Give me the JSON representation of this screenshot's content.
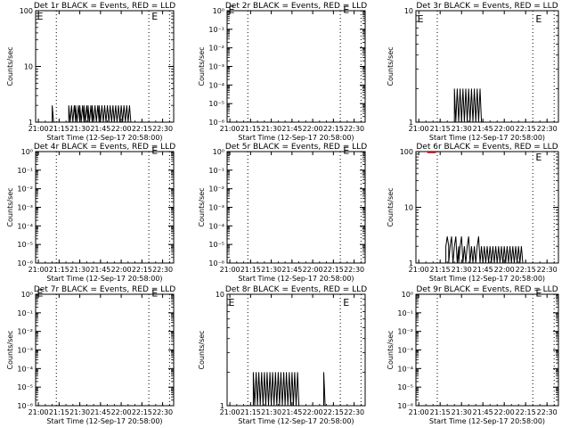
{
  "chart_data": [
    {
      "type": "line",
      "title": "Det 1r BLACK = Events, RED = LLD",
      "xlabel": "Start Time (12-Sep-17 20:58:00)",
      "ylabel": "Counts/sec",
      "log_y": true,
      "x_ticks": [
        "21:00",
        "21:15",
        "21:30",
        "21:45",
        "22:00",
        "22:15",
        "22:30"
      ],
      "y_ticks": [
        "1",
        "10",
        "100"
      ],
      "ylim": [
        1,
        100
      ],
      "xlim": [
        "20:58",
        "22:38"
      ],
      "dotted_vlines": [
        "21:13",
        "22:20",
        "22:35"
      ],
      "e_markers": [
        [
          "20:59",
          80
        ],
        [
          "22:22",
          80
        ]
      ],
      "series": [
        {
          "name": "Events",
          "color": "#000000",
          "points": [
            [
              "21:10",
              1
            ],
            [
              "21:10",
              2
            ],
            [
              "21:11",
              1
            ],
            [
              "21:22",
              1
            ],
            [
              "21:22",
              2
            ],
            [
              "21:23",
              1
            ],
            [
              "21:24",
              2
            ],
            [
              "21:25",
              1
            ],
            [
              "21:26",
              2
            ],
            [
              "21:27",
              1
            ],
            [
              "21:27",
              2
            ],
            [
              "21:28",
              1
            ],
            [
              "21:29",
              2
            ],
            [
              "21:30",
              1
            ],
            [
              "21:30",
              2
            ],
            [
              "21:31",
              1
            ],
            [
              "21:32",
              2
            ],
            [
              "21:33",
              1
            ],
            [
              "21:33",
              2
            ],
            [
              "21:34",
              1
            ],
            [
              "21:35",
              2
            ],
            [
              "21:36",
              1
            ],
            [
              "21:36",
              2
            ],
            [
              "21:37",
              1
            ],
            [
              "21:38",
              2
            ],
            [
              "21:39",
              1
            ],
            [
              "21:39",
              2
            ],
            [
              "21:40",
              1
            ],
            [
              "21:41",
              2
            ],
            [
              "21:42",
              1
            ],
            [
              "21:43",
              2
            ],
            [
              "21:44",
              1
            ],
            [
              "21:44",
              2
            ],
            [
              "21:45",
              1
            ],
            [
              "21:46",
              2
            ],
            [
              "21:47",
              1
            ],
            [
              "21:48",
              2
            ],
            [
              "21:49",
              1
            ],
            [
              "21:50",
              2
            ],
            [
              "21:51",
              1
            ],
            [
              "21:52",
              2
            ],
            [
              "21:53",
              1
            ],
            [
              "21:54",
              2
            ],
            [
              "21:55",
              1
            ],
            [
              "21:56",
              2
            ],
            [
              "21:57",
              1
            ],
            [
              "21:58",
              2
            ],
            [
              "21:59",
              1
            ],
            [
              "22:00",
              2
            ],
            [
              "22:01",
              1
            ],
            [
              "22:02",
              2
            ],
            [
              "22:03",
              1
            ],
            [
              "22:04",
              2
            ],
            [
              "22:05",
              1
            ],
            [
              "22:06",
              2
            ],
            [
              "22:07",
              1
            ],
            [
              "22:08",
              1
            ]
          ]
        }
      ]
    },
    {
      "type": "line",
      "title": "Det 2r BLACK = Events, RED = LLD",
      "xlabel": "Start Time (12-Sep-17 20:58:00)",
      "ylabel": "Counts/sec",
      "log_y": true,
      "x_ticks": [
        "21:00",
        "21:15",
        "21:30",
        "21:45",
        "22:00",
        "22:15",
        "22:30"
      ],
      "y_ticks": [
        "10⁰",
        "10⁻¹",
        "10⁻²",
        "10⁻³",
        "10⁻⁴",
        "10⁻⁵",
        "10⁻⁶"
      ],
      "ylim": [
        1e-06,
        1
      ],
      "xlim": [
        "20:58",
        "22:38"
      ],
      "dotted_vlines": [
        "21:13",
        "22:20",
        "22:35"
      ],
      "e_markers": [
        [
          "20:59",
          1.2
        ],
        [
          "22:22",
          1.2
        ]
      ],
      "series": []
    },
    {
      "type": "line",
      "title": "Det 3r BLACK = Events, RED = LLD",
      "xlabel": "Start Time (12-Sep-17 20:58:00)",
      "ylabel": "Counts/sec",
      "log_y": true,
      "x_ticks": [
        "21:00",
        "21:15",
        "21:30",
        "21:45",
        "22:00",
        "22:15",
        "22:30"
      ],
      "y_ticks": [
        "1",
        "10"
      ],
      "ylim": [
        1,
        10
      ],
      "xlim": [
        "20:58",
        "22:38"
      ],
      "dotted_vlines": [
        "21:13",
        "22:20",
        "22:35"
      ],
      "e_markers": [
        [
          "20:59",
          8.5
        ],
        [
          "22:22",
          8.5
        ]
      ],
      "series": [
        {
          "name": "Events",
          "color": "#000000",
          "points": [
            [
              "21:25",
              1
            ],
            [
              "21:25",
              2
            ],
            [
              "21:26",
              1
            ],
            [
              "21:27",
              2
            ],
            [
              "21:28",
              1
            ],
            [
              "21:29",
              2
            ],
            [
              "21:30",
              1
            ],
            [
              "21:31",
              2
            ],
            [
              "21:32",
              1
            ],
            [
              "21:33",
              2
            ],
            [
              "21:34",
              1
            ],
            [
              "21:35",
              2
            ],
            [
              "21:36",
              1
            ],
            [
              "21:37",
              2
            ],
            [
              "21:38",
              1
            ],
            [
              "21:39",
              2
            ],
            [
              "21:40",
              1
            ],
            [
              "21:41",
              2
            ],
            [
              "21:42",
              1
            ],
            [
              "21:43",
              2
            ],
            [
              "21:44",
              1
            ]
          ]
        }
      ]
    },
    {
      "type": "line",
      "title": "Det 4r BLACK = Events, RED = LLD",
      "xlabel": "Start Time (12-Sep-17 20:58:00)",
      "ylabel": "Counts/sec",
      "log_y": true,
      "x_ticks": [
        "21:00",
        "21:15",
        "21:30",
        "21:45",
        "22:00",
        "22:15",
        "22:30"
      ],
      "y_ticks": [
        "10⁰",
        "10⁻¹",
        "10⁻²",
        "10⁻³",
        "10⁻⁴",
        "10⁻⁵",
        "10⁻⁶"
      ],
      "ylim": [
        1e-06,
        1
      ],
      "xlim": [
        "20:58",
        "22:38"
      ],
      "dotted_vlines": [
        "21:13",
        "22:20",
        "22:35"
      ],
      "e_markers": [
        [
          "22:22",
          1.2
        ]
      ],
      "series": []
    },
    {
      "type": "line",
      "title": "Det 5r BLACK = Events, RED = LLD",
      "xlabel": "Start Time (12-Sep-17 20:58:00)",
      "ylabel": "Counts/sec",
      "log_y": true,
      "x_ticks": [
        "21:00",
        "21:15",
        "21:30",
        "21:45",
        "22:00",
        "22:15",
        "22:30"
      ],
      "y_ticks": [
        "10⁰",
        "10⁻¹",
        "10⁻²",
        "10⁻³",
        "10⁻⁴",
        "10⁻⁵",
        "10⁻⁶"
      ],
      "ylim": [
        1e-06,
        1
      ],
      "xlim": [
        "20:58",
        "22:38"
      ],
      "dotted_vlines": [
        "21:13",
        "22:20",
        "22:35"
      ],
      "e_markers": [
        [
          "22:22",
          1.2
        ]
      ],
      "series": []
    },
    {
      "type": "line",
      "title": "Det 6r BLACK = Events, RED = LLD",
      "xlabel": "Start Time (12-Sep-17 20:58:00)",
      "ylabel": "Counts/sec",
      "log_y": true,
      "x_ticks": [
        "21:00",
        "21:15",
        "21:30",
        "21:45",
        "22:00",
        "22:15",
        "22:30"
      ],
      "y_ticks": [
        "1",
        "10",
        "100"
      ],
      "ylim": [
        1,
        100
      ],
      "xlim": [
        "20:58",
        "22:38"
      ],
      "dotted_vlines": [
        "21:13",
        "22:20",
        "22:35"
      ],
      "e_markers": [
        [
          "22:22",
          80
        ]
      ],
      "red_segment": [
        [
          "21:06",
          100
        ],
        [
          "21:12",
          100
        ]
      ],
      "series": [
        {
          "name": "Events",
          "color": "#000000",
          "points": [
            [
              "21:19",
              1
            ],
            [
              "21:19",
              2
            ],
            [
              "21:20",
              3
            ],
            [
              "21:21",
              2
            ],
            [
              "21:21",
              1
            ],
            [
              "21:22",
              2
            ],
            [
              "21:23",
              3
            ],
            [
              "21:24",
              1
            ],
            [
              "21:25",
              2
            ],
            [
              "21:26",
              3
            ],
            [
              "21:27",
              1
            ],
            [
              "21:28",
              2
            ],
            [
              "21:28",
              1
            ],
            [
              "21:29",
              2
            ],
            [
              "21:30",
              3
            ],
            [
              "21:31",
              1
            ],
            [
              "21:32",
              2
            ],
            [
              "21:33",
              1
            ],
            [
              "21:34",
              2
            ],
            [
              "21:35",
              3
            ],
            [
              "21:36",
              1
            ],
            [
              "21:37",
              2
            ],
            [
              "21:38",
              1
            ],
            [
              "21:39",
              2
            ],
            [
              "21:40",
              1
            ],
            [
              "21:41",
              2
            ],
            [
              "21:42",
              3
            ],
            [
              "21:43",
              1
            ],
            [
              "21:44",
              2
            ],
            [
              "21:45",
              1
            ],
            [
              "21:46",
              2
            ],
            [
              "21:47",
              1
            ],
            [
              "21:48",
              2
            ],
            [
              "21:49",
              1
            ],
            [
              "21:50",
              2
            ],
            [
              "21:51",
              1
            ],
            [
              "21:52",
              2
            ],
            [
              "21:53",
              1
            ],
            [
              "21:54",
              2
            ],
            [
              "21:55",
              1
            ],
            [
              "21:56",
              2
            ],
            [
              "21:57",
              1
            ],
            [
              "21:58",
              2
            ],
            [
              "21:59",
              1
            ],
            [
              "22:00",
              2
            ],
            [
              "22:01",
              1
            ],
            [
              "22:02",
              2
            ],
            [
              "22:03",
              1
            ],
            [
              "22:04",
              2
            ],
            [
              "22:05",
              1
            ],
            [
              "22:06",
              2
            ],
            [
              "22:07",
              1
            ],
            [
              "22:08",
              2
            ],
            [
              "22:09",
              1
            ],
            [
              "22:10",
              2
            ],
            [
              "22:11",
              1
            ],
            [
              "22:12",
              2
            ],
            [
              "22:13",
              1
            ]
          ]
        }
      ]
    },
    {
      "type": "line",
      "title": "Det 7r BLACK = Events, RED = LLD",
      "xlabel": "Start Time (12-Sep-17 20:58:00)",
      "ylabel": "Counts/sec",
      "log_y": true,
      "x_ticks": [
        "21:00",
        "21:15",
        "21:30",
        "21:45",
        "22:00",
        "22:15",
        "22:30"
      ],
      "y_ticks": [
        "10⁰",
        "10⁻¹",
        "10⁻²",
        "10⁻³",
        "10⁻⁴",
        "10⁻⁵",
        "10⁻⁶"
      ],
      "ylim": [
        1e-06,
        1
      ],
      "xlim": [
        "20:58",
        "22:38"
      ],
      "dotted_vlines": [
        "21:13",
        "22:20",
        "22:35"
      ],
      "e_markers": [
        [
          "20:59",
          1.2
        ],
        [
          "22:22",
          1.2
        ]
      ],
      "series": []
    },
    {
      "type": "line",
      "title": "Det 8r BLACK = Events, RED = LLD",
      "xlabel": "Start Time (12-Sep-17 20:58:00)",
      "ylabel": "Counts/sec",
      "log_y": true,
      "x_ticks": [
        "21:00",
        "21:15",
        "21:30",
        "21:45",
        "22:00",
        "22:15",
        "22:30"
      ],
      "y_ticks": [
        "1",
        "10"
      ],
      "ylim": [
        1,
        10
      ],
      "xlim": [
        "20:58",
        "22:38"
      ],
      "dotted_vlines": [
        "21:13",
        "22:20",
        "22:35"
      ],
      "e_markers": [
        [
          "20:59",
          8.5
        ],
        [
          "22:22",
          8.5
        ]
      ],
      "series": [
        {
          "name": "Events",
          "color": "#000000",
          "points": [
            [
              "21:17",
              1
            ],
            [
              "21:17",
              2
            ],
            [
              "21:18",
              1
            ],
            [
              "21:19",
              2
            ],
            [
              "21:20",
              1
            ],
            [
              "21:21",
              2
            ],
            [
              "21:22",
              1
            ],
            [
              "21:23",
              2
            ],
            [
              "21:24",
              1
            ],
            [
              "21:25",
              2
            ],
            [
              "21:26",
              1
            ],
            [
              "21:27",
              2
            ],
            [
              "21:28",
              1
            ],
            [
              "21:29",
              2
            ],
            [
              "21:30",
              1
            ],
            [
              "21:31",
              2
            ],
            [
              "21:32",
              1
            ],
            [
              "21:33",
              2
            ],
            [
              "21:34",
              1
            ],
            [
              "21:35",
              2
            ],
            [
              "21:36",
              1
            ],
            [
              "21:37",
              2
            ],
            [
              "21:38",
              1
            ],
            [
              "21:39",
              2
            ],
            [
              "21:40",
              1
            ],
            [
              "21:41",
              2
            ],
            [
              "21:42",
              1
            ],
            [
              "21:43",
              2
            ],
            [
              "21:44",
              1
            ],
            [
              "21:45",
              2
            ],
            [
              "21:46",
              1
            ],
            [
              "21:47",
              2
            ],
            [
              "21:48",
              1
            ],
            [
              "21:49",
              2
            ],
            [
              "21:50",
              1
            ],
            [
              "22:08",
              1
            ],
            [
              "22:08",
              2
            ],
            [
              "22:09",
              1
            ]
          ]
        }
      ]
    },
    {
      "type": "line",
      "title": "Det 9r BLACK = Events, RED = LLD",
      "xlabel": "Start Time (12-Sep-17 20:58:00)",
      "ylabel": "Counts/sec",
      "log_y": true,
      "x_ticks": [
        "21:00",
        "21:15",
        "21:30",
        "21:45",
        "22:00",
        "22:15",
        "22:30"
      ],
      "y_ticks": [
        "10⁰",
        "10⁻¹",
        "10⁻²",
        "10⁻³",
        "10⁻⁴",
        "10⁻⁵",
        "10⁻⁶"
      ],
      "ylim": [
        1e-06,
        1
      ],
      "xlim": [
        "20:58",
        "22:38"
      ],
      "dotted_vlines": [
        "21:13",
        "22:20",
        "22:35"
      ],
      "e_markers": [
        [
          "22:22",
          1.2
        ]
      ],
      "series": []
    }
  ]
}
